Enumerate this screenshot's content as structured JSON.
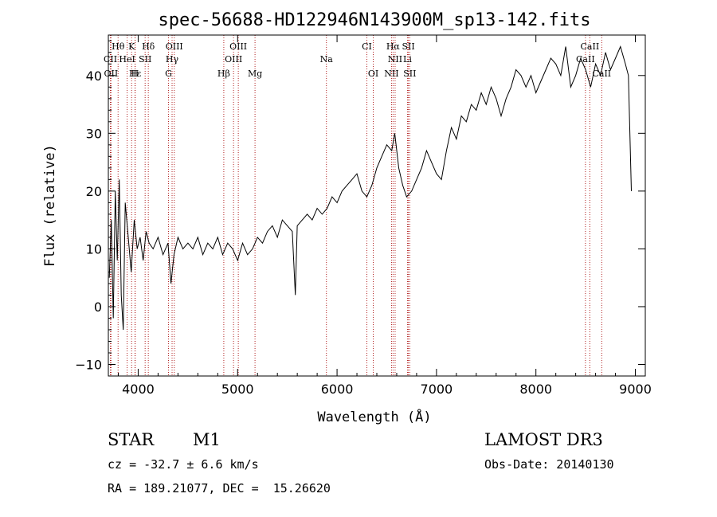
{
  "chart_data": {
    "type": "line",
    "title": "spec-56688-HD122946N143900M_sp13-142.fits",
    "xlabel": "Wavelength (Å)",
    "ylabel": "Flux (relative)",
    "xlim": [
      3700,
      9100
    ],
    "ylim": [
      -12,
      47
    ],
    "xticks": [
      4000,
      5000,
      6000,
      7000,
      8000,
      9000
    ],
    "yticks": [
      -10,
      0,
      10,
      20,
      30,
      40
    ],
    "grid": false,
    "line_color": "#000000",
    "marker_color": "#b22222",
    "spectrum": {
      "x": [
        3710,
        3730,
        3750,
        3770,
        3790,
        3810,
        3830,
        3850,
        3870,
        3900,
        3930,
        3960,
        3990,
        4020,
        4050,
        4080,
        4110,
        4150,
        4200,
        4250,
        4300,
        4330,
        4360,
        4400,
        4450,
        4500,
        4550,
        4600,
        4650,
        4700,
        4750,
        4800,
        4850,
        4900,
        4950,
        5000,
        5050,
        5100,
        5150,
        5200,
        5250,
        5300,
        5350,
        5400,
        5450,
        5500,
        5550,
        5580,
        5600,
        5650,
        5700,
        5750,
        5800,
        5850,
        5900,
        5950,
        6000,
        6050,
        6100,
        6150,
        6200,
        6250,
        6300,
        6350,
        6400,
        6450,
        6500,
        6550,
        6580,
        6620,
        6660,
        6700,
        6750,
        6800,
        6850,
        6900,
        6950,
        7000,
        7050,
        7100,
        7150,
        7200,
        7250,
        7300,
        7350,
        7400,
        7450,
        7500,
        7550,
        7600,
        7650,
        7700,
        7750,
        7800,
        7850,
        7900,
        7950,
        8000,
        8050,
        8100,
        8150,
        8200,
        8250,
        8300,
        8350,
        8400,
        8450,
        8500,
        8550,
        8600,
        8650,
        8700,
        8750,
        8800,
        8850,
        8900,
        8930,
        8960
      ],
      "y": [
        5,
        15,
        -2,
        20,
        8,
        22,
        2,
        -4,
        18,
        12,
        6,
        15,
        10,
        12,
        8,
        13,
        11,
        10,
        12,
        9,
        11,
        4,
        9,
        12,
        10,
        11,
        10,
        12,
        9,
        11,
        10,
        12,
        9,
        11,
        10,
        8,
        11,
        9,
        10,
        12,
        11,
        13,
        14,
        12,
        15,
        14,
        13,
        2,
        14,
        15,
        16,
        15,
        17,
        16,
        17,
        19,
        18,
        20,
        21,
        22,
        23,
        20,
        19,
        21,
        24,
        26,
        28,
        27,
        30,
        24,
        21,
        19,
        20,
        22,
        24,
        27,
        25,
        23,
        22,
        27,
        31,
        29,
        33,
        32,
        35,
        34,
        37,
        35,
        38,
        36,
        33,
        36,
        38,
        41,
        40,
        38,
        40,
        37,
        39,
        41,
        43,
        42,
        40,
        45,
        38,
        40,
        43,
        41,
        38,
        42,
        40,
        44,
        41,
        43,
        45,
        42,
        40,
        20
      ]
    },
    "lines": [
      {
        "label": "Hθ",
        "x": 3798,
        "row": 1
      },
      {
        "label": "K",
        "x": 3934,
        "row": 1
      },
      {
        "label": "Hδ",
        "x": 4102,
        "row": 1
      },
      {
        "label": "OIII",
        "x": 4363,
        "row": 1
      },
      {
        "label": "OIII",
        "x": 5007,
        "row": 1
      },
      {
        "label": "CI",
        "x": 6300,
        "row": 1
      },
      {
        "label": "Hα",
        "x": 6563,
        "row": 1
      },
      {
        "label": "SII",
        "x": 6717,
        "row": 1
      },
      {
        "label": "CaII",
        "x": 8542,
        "row": 1
      },
      {
        "label": "CII",
        "x": 3720,
        "row": 2
      },
      {
        "label": "HeI",
        "x": 3889,
        "row": 2
      },
      {
        "label": "SII",
        "x": 4070,
        "row": 2
      },
      {
        "label": "Hγ",
        "x": 4341,
        "row": 2
      },
      {
        "label": "OIII",
        "x": 4959,
        "row": 2
      },
      {
        "label": "Na",
        "x": 5893,
        "row": 2
      },
      {
        "label": "NII",
        "x": 6584,
        "row": 2
      },
      {
        "label": "Li",
        "x": 6708,
        "row": 2
      },
      {
        "label": "CaII",
        "x": 8498,
        "row": 2
      },
      {
        "label": "OII",
        "x": 3727,
        "row": 3
      },
      {
        "label": "Hε",
        "x": 3970,
        "row": 3
      },
      {
        "label": "H",
        "x": 3968,
        "row": 3
      },
      {
        "label": "G",
        "x": 4305,
        "row": 3
      },
      {
        "label": "Hβ",
        "x": 4861,
        "row": 3
      },
      {
        "label": "Mg",
        "x": 5175,
        "row": 3
      },
      {
        "label": "OI",
        "x": 6364,
        "row": 3
      },
      {
        "label": "NII",
        "x": 6548,
        "row": 3
      },
      {
        "label": "SII",
        "x": 6731,
        "row": 3
      },
      {
        "label": "CaII",
        "x": 8662,
        "row": 3
      }
    ]
  },
  "info": {
    "object_class": "STAR",
    "subclass": "M1",
    "survey": "LAMOST DR3",
    "velocity": "cz = -32.7 ± 6.6 km/s",
    "obs_date": "Obs-Date: 20140130",
    "coords": "RA = 189.21077, DEC =  15.26620"
  }
}
